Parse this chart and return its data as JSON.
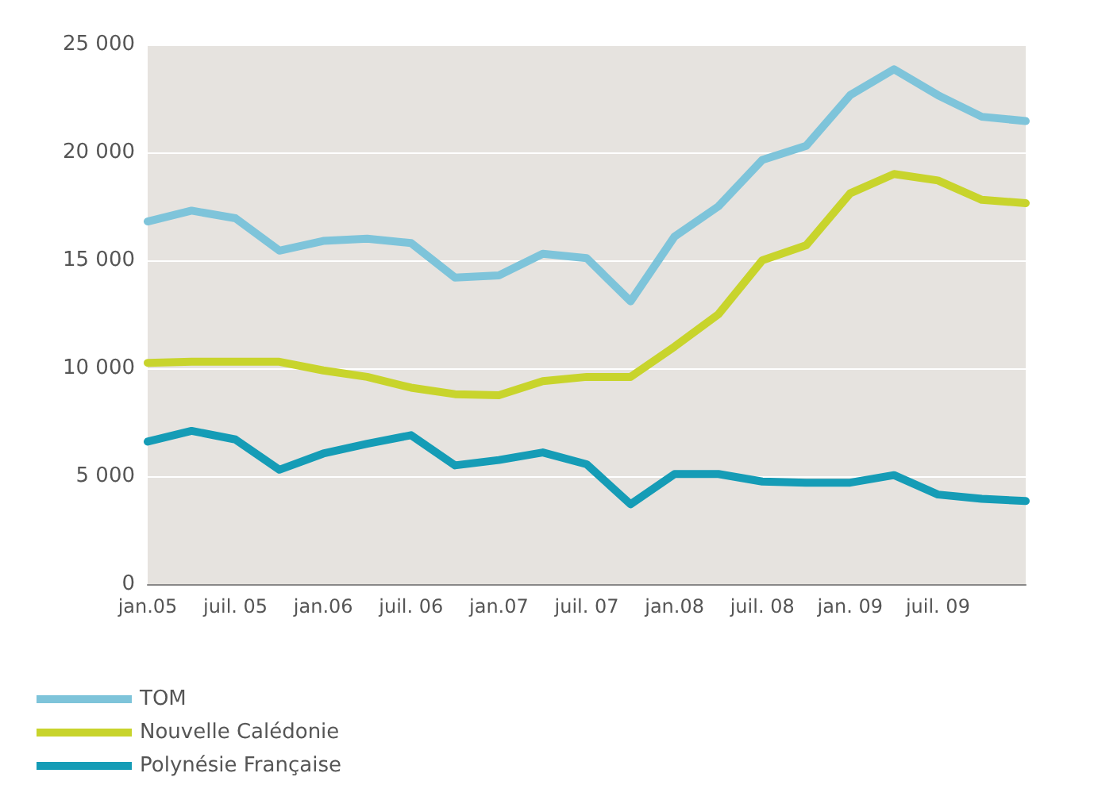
{
  "chart_data": {
    "type": "line",
    "categories": [
      "jan.05",
      null,
      "juil. 05",
      null,
      "jan.06",
      null,
      "juil. 06",
      null,
      "jan.07",
      null,
      "juil. 07",
      null,
      "jan.08",
      null,
      "juil. 08",
      null,
      "jan. 09",
      null,
      "juil. 09",
      null,
      null
    ],
    "series": [
      {
        "name": "TOM",
        "color": "#7ec4da",
        "values": [
          16800,
          17300,
          16950,
          15450,
          15900,
          16000,
          15800,
          14200,
          14300,
          15300,
          15100,
          13100,
          16100,
          17500,
          19650,
          20300,
          22650,
          23850,
          22650,
          21650,
          21450
        ]
      },
      {
        "name": "Nouvelle Calédonie",
        "color": "#c8d42c",
        "values": [
          10250,
          10300,
          10300,
          10300,
          9900,
          9600,
          9100,
          8800,
          8750,
          9400,
          9600,
          9600,
          11000,
          12500,
          15000,
          15700,
          18100,
          19000,
          18700,
          17800,
          17650
        ]
      },
      {
        "name": "Polynésie Française",
        "color": "#159cb6",
        "values": [
          6600,
          7100,
          6700,
          5300,
          6050,
          6500,
          6900,
          5500,
          5750,
          6100,
          5550,
          3700,
          5100,
          5100,
          4750,
          4700,
          4700,
          5050,
          4150,
          3950,
          3850
        ]
      }
    ],
    "ylim": [
      0,
      25000
    ],
    "yticks": [
      0,
      {
        "value": 5000,
        "label": "5 000"
      },
      {
        "value": 10000,
        "label": "10 000"
      },
      {
        "value": 15000,
        "label": "15 000"
      },
      {
        "value": 20000,
        "label": "20 000"
      },
      {
        "value": 25000,
        "label": "25 000"
      }
    ],
    "grid": "y",
    "legend": "bottom left",
    "marker": "none",
    "line_style": "solid"
  }
}
